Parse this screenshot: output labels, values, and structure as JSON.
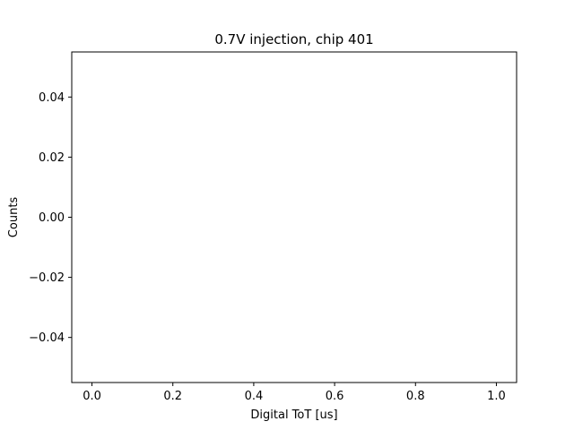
{
  "chart_data": {
    "type": "line",
    "title": "0.7V injection, chip 401",
    "xlabel": "Digital ToT [us]",
    "ylabel": "Counts",
    "xlim": [
      -0.05,
      1.05
    ],
    "ylim": [
      -0.055,
      0.055
    ],
    "xticks": [
      0.0,
      0.2,
      0.4,
      0.6,
      0.8,
      1.0
    ],
    "xtick_labels": [
      "0.0",
      "0.2",
      "0.4",
      "0.6",
      "0.8",
      "1.0"
    ],
    "yticks": [
      -0.04,
      -0.02,
      0.0,
      0.02,
      0.04
    ],
    "ytick_labels": [
      "−0.04",
      "−0.02",
      "0.00",
      "0.02",
      "0.04"
    ],
    "series": [],
    "grid": false,
    "legend": false
  },
  "colors": {
    "axes": "#000000",
    "background": "#ffffff"
  }
}
